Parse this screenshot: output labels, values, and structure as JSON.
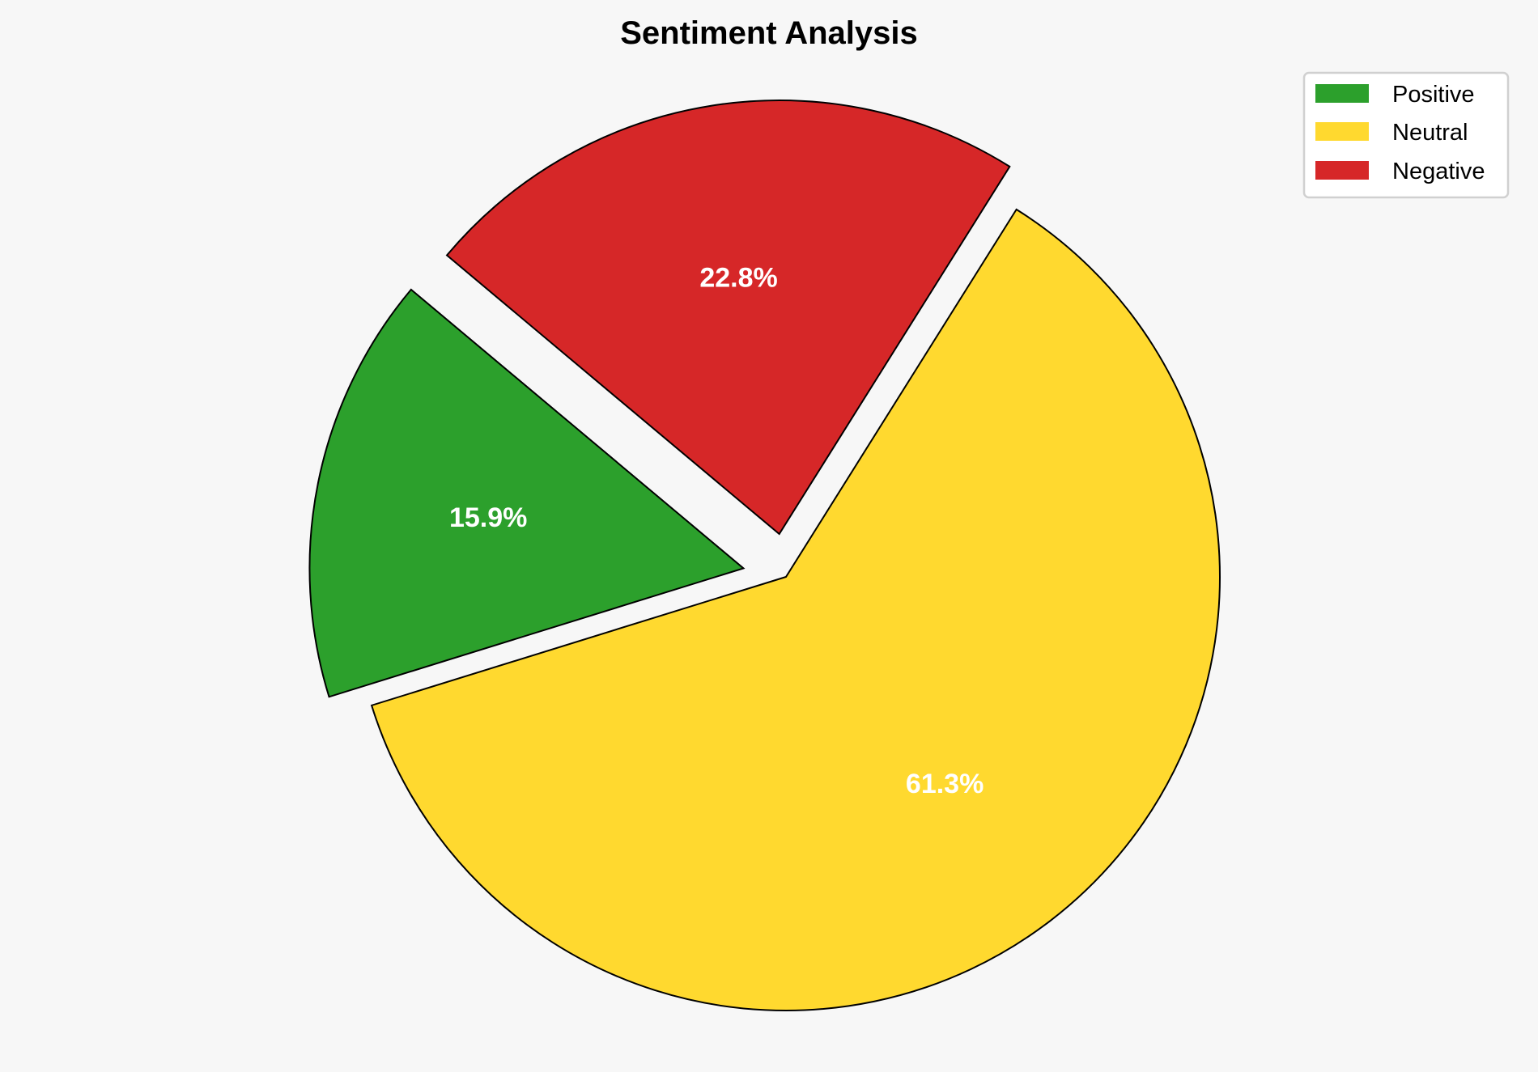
{
  "chart_data": {
    "type": "pie",
    "title": "Sentiment Analysis",
    "categories": [
      "Positive",
      "Neutral",
      "Negative"
    ],
    "values": [
      15.9,
      61.3,
      22.8
    ],
    "labels": [
      "15.9%",
      "61.3%",
      "22.8%"
    ],
    "colors": [
      "#2ca02c",
      "#ffd92f",
      "#d62728"
    ],
    "explode": [
      0.1,
      0,
      0.1
    ],
    "start_angle": 140,
    "direction": "counterclockwise",
    "legend": {
      "placement": "top-right",
      "entries": [
        "Positive",
        "Neutral",
        "Negative"
      ]
    }
  }
}
